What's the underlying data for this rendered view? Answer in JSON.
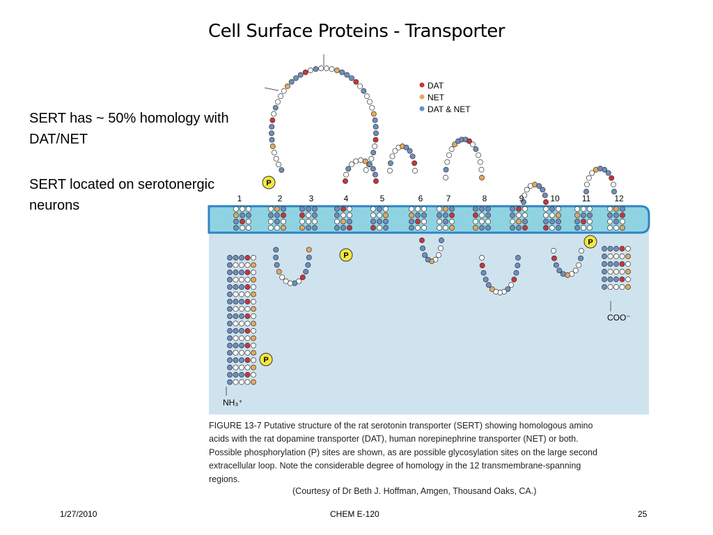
{
  "title": "Cell Surface Proteins - Transporter",
  "bullets": [
    "SERT has ~ 50% homology with DAT/NET",
    "SERT located on serotonergic neurons"
  ],
  "figure": {
    "legend": [
      "DAT",
      "NET",
      "DAT & NET"
    ],
    "tm_labels": [
      "1",
      "2",
      "3",
      "4",
      "5",
      "6",
      "7",
      "8",
      "9",
      "10",
      "11",
      "12"
    ],
    "phospho_labels": [
      "P",
      "P",
      "P",
      "P"
    ],
    "n_terminus": "NH₃⁺",
    "c_terminus": "COO⁻",
    "caption": [
      "FIGURE 13-7 Putative structure of the rat serotonin transporter (SERT) showing homologous amino",
      "acids with the rat dopamine transporter (DAT), human norepinephrine transporter (NET) or both.",
      "Possible phosphorylation (P) sites are shown, as are possible glycosylation sites on the large second",
      "extracellular loop. Note the considerable degree of homology in the 12 transmembrane-spanning",
      "regions."
    ],
    "credit": "(Courtesy of Dr Beth J. Hoffman, Amgen, Thousand Oaks, CA.)"
  },
  "footer": {
    "date": "1/27/2010",
    "course": "CHEM E-120",
    "page": "25"
  }
}
